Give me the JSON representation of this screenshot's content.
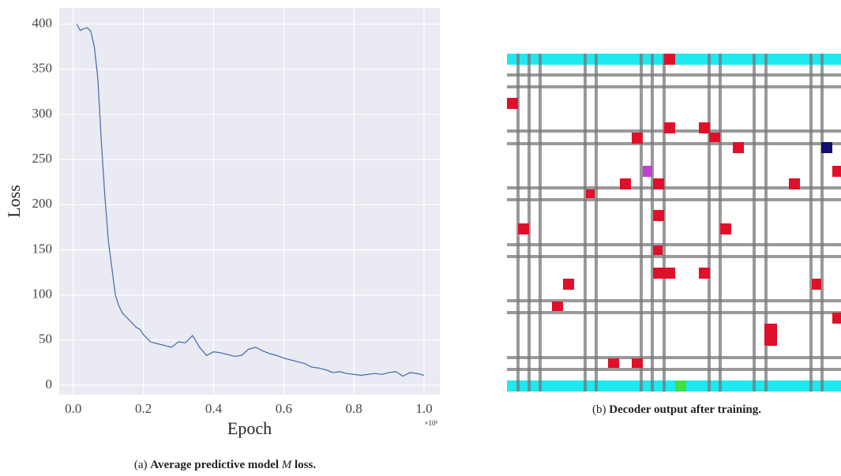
{
  "chart_data": {
    "type": "line",
    "x_label": "Epoch",
    "y_label": "Loss",
    "x_offset_label": "×10⁶",
    "xlim": [
      -0.04,
      1.045
    ],
    "ylim": [
      -10.5,
      418
    ],
    "xticks": [
      {
        "value": 0,
        "label": "0.0"
      },
      0.2,
      0.4,
      0.6,
      0.8,
      {
        "value": 1,
        "label": "1.0"
      }
    ],
    "yticks": [
      0,
      50,
      100,
      150,
      200,
      250,
      300,
      350,
      400
    ],
    "grid": true,
    "background": "#eaeaf2",
    "series": [
      {
        "color": "#4c72b0",
        "x": [
          0.01,
          0.02,
          0.03,
          0.04,
          0.05,
          0.06,
          0.07,
          0.08,
          0.09,
          0.1,
          0.11,
          0.12,
          0.13,
          0.14,
          0.15,
          0.16,
          0.17,
          0.18,
          0.19,
          0.2,
          0.22,
          0.24,
          0.26,
          0.28,
          0.3,
          0.32,
          0.34,
          0.36,
          0.38,
          0.4,
          0.42,
          0.44,
          0.46,
          0.48,
          0.5,
          0.52,
          0.54,
          0.56,
          0.58,
          0.6,
          0.62,
          0.64,
          0.66,
          0.68,
          0.7,
          0.72,
          0.74,
          0.76,
          0.78,
          0.8,
          0.82,
          0.84,
          0.86,
          0.88,
          0.9,
          0.92,
          0.94,
          0.96,
          0.98,
          1.0
        ],
        "values": [
          400,
          393,
          395,
          396,
          392,
          375,
          340,
          270,
          210,
          160,
          130,
          100,
          88,
          80,
          76,
          72,
          68,
          64,
          62,
          56,
          48,
          46,
          44,
          42,
          48,
          47,
          55,
          42,
          33,
          37,
          36,
          34,
          32,
          33,
          40,
          42,
          38,
          35,
          33,
          30,
          28,
          26,
          24,
          20,
          19,
          17,
          14,
          15,
          13,
          12,
          11,
          12,
          13,
          12,
          14,
          15,
          10,
          14,
          13,
          11
        ]
      }
    ]
  },
  "captions": {
    "a": {
      "label": "(a)",
      "text": "Average predictive model",
      "math": "M",
      "tail": "loss."
    },
    "b": {
      "label": "(b)",
      "text": "Decoder output after training."
    }
  }
}
